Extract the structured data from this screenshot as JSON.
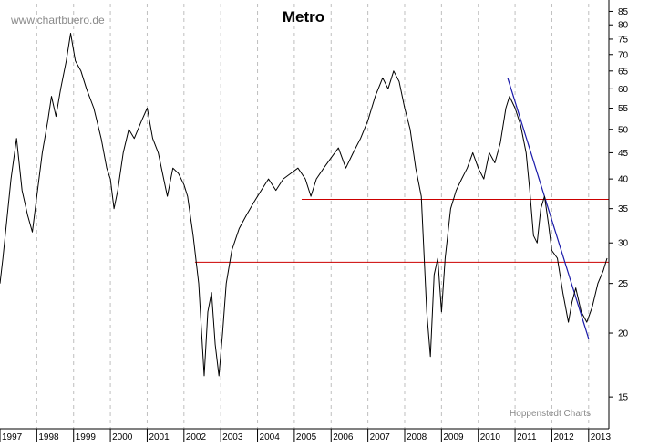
{
  "chart_data": {
    "type": "line",
    "title": "Metro",
    "watermark": "www.chartbuero.de",
    "credit": "Hoppenstedt Charts",
    "yscale": "log",
    "ylim": [
      13,
      88
    ],
    "xlim": [
      1997.0,
      2013.55
    ],
    "y_ticks": [
      15,
      20,
      25,
      30,
      35,
      40,
      45,
      50,
      55,
      60,
      65,
      70,
      75,
      80,
      85
    ],
    "x_ticks": [
      "1997",
      "1998",
      "1999",
      "2000",
      "2001",
      "2002",
      "2003",
      "2004",
      "2005",
      "2006",
      "2007",
      "2008",
      "2009",
      "2010",
      "2011",
      "2012",
      "2013"
    ],
    "grid": "vertical-dashed",
    "colors": {
      "price": "#000000",
      "support": "#cc0000",
      "trend": "#1a1aaa",
      "grid": "#bfbfbf"
    },
    "series": [
      {
        "values": [
          [
            1997.0,
            25.0
          ],
          [
            1997.08,
            28.0
          ],
          [
            1997.18,
            33.0
          ],
          [
            1997.3,
            40.0
          ],
          [
            1997.45,
            48.0
          ],
          [
            1997.6,
            38.0
          ],
          [
            1997.75,
            34.0
          ],
          [
            1997.88,
            31.5
          ],
          [
            1998.0,
            37.0
          ],
          [
            1998.15,
            45.0
          ],
          [
            1998.3,
            52.0
          ],
          [
            1998.4,
            58.0
          ],
          [
            1998.52,
            53.0
          ],
          [
            1998.65,
            60.0
          ],
          [
            1998.8,
            68.0
          ],
          [
            1998.92,
            77.0
          ],
          [
            1999.05,
            68.0
          ],
          [
            1999.2,
            65.0
          ],
          [
            1999.35,
            60.0
          ],
          [
            1999.55,
            55.0
          ],
          [
            1999.75,
            48.0
          ],
          [
            1999.9,
            42.0
          ],
          [
            2000.0,
            40.0
          ],
          [
            2000.1,
            35.0
          ],
          [
            2000.2,
            38.0
          ],
          [
            2000.35,
            45.0
          ],
          [
            2000.5,
            50.0
          ],
          [
            2000.65,
            48.0
          ],
          [
            2000.85,
            52.0
          ],
          [
            2001.0,
            55.0
          ],
          [
            2001.15,
            48.0
          ],
          [
            2001.3,
            45.0
          ],
          [
            2001.45,
            40.0
          ],
          [
            2001.55,
            37.0
          ],
          [
            2001.7,
            42.0
          ],
          [
            2001.85,
            41.0
          ],
          [
            2002.0,
            39.0
          ],
          [
            2002.1,
            37.0
          ],
          [
            2002.25,
            31.0
          ],
          [
            2002.4,
            25.0
          ],
          [
            2002.48,
            20.0
          ],
          [
            2002.55,
            16.5
          ],
          [
            2002.65,
            22.0
          ],
          [
            2002.75,
            24.0
          ],
          [
            2002.85,
            19.0
          ],
          [
            2002.95,
            16.5
          ],
          [
            2003.05,
            20.0
          ],
          [
            2003.15,
            25.0
          ],
          [
            2003.3,
            29.0
          ],
          [
            2003.5,
            32.0
          ],
          [
            2003.7,
            34.0
          ],
          [
            2003.9,
            36.0
          ],
          [
            2004.1,
            38.0
          ],
          [
            2004.3,
            40.0
          ],
          [
            2004.5,
            38.0
          ],
          [
            2004.7,
            40.0
          ],
          [
            2004.9,
            41.0
          ],
          [
            2005.1,
            42.0
          ],
          [
            2005.3,
            40.0
          ],
          [
            2005.45,
            37.0
          ],
          [
            2005.6,
            40.0
          ],
          [
            2005.8,
            42.0
          ],
          [
            2006.0,
            44.0
          ],
          [
            2006.2,
            46.0
          ],
          [
            2006.4,
            42.0
          ],
          [
            2006.6,
            45.0
          ],
          [
            2006.8,
            48.0
          ],
          [
            2007.0,
            52.0
          ],
          [
            2007.2,
            58.0
          ],
          [
            2007.4,
            63.0
          ],
          [
            2007.55,
            60.0
          ],
          [
            2007.7,
            65.0
          ],
          [
            2007.85,
            62.0
          ],
          [
            2008.0,
            55.0
          ],
          [
            2008.15,
            50.0
          ],
          [
            2008.3,
            42.0
          ],
          [
            2008.45,
            37.0
          ],
          [
            2008.6,
            22.0
          ],
          [
            2008.7,
            18.0
          ],
          [
            2008.8,
            26.0
          ],
          [
            2008.9,
            28.0
          ],
          [
            2009.0,
            22.0
          ],
          [
            2009.1,
            28.0
          ],
          [
            2009.25,
            35.0
          ],
          [
            2009.4,
            38.0
          ],
          [
            2009.55,
            40.0
          ],
          [
            2009.7,
            42.0
          ],
          [
            2009.85,
            45.0
          ],
          [
            2010.0,
            42.0
          ],
          [
            2010.15,
            40.0
          ],
          [
            2010.3,
            45.0
          ],
          [
            2010.45,
            43.0
          ],
          [
            2010.6,
            47.0
          ],
          [
            2010.75,
            55.0
          ],
          [
            2010.85,
            58.0
          ],
          [
            2011.0,
            55.0
          ],
          [
            2011.15,
            51.0
          ],
          [
            2011.3,
            45.0
          ],
          [
            2011.4,
            38.0
          ],
          [
            2011.5,
            31.0
          ],
          [
            2011.6,
            30.0
          ],
          [
            2011.7,
            35.0
          ],
          [
            2011.8,
            37.0
          ],
          [
            2011.9,
            33.0
          ],
          [
            2012.0,
            29.0
          ],
          [
            2012.15,
            28.0
          ],
          [
            2012.3,
            24.0
          ],
          [
            2012.45,
            21.0
          ],
          [
            2012.55,
            23.0
          ],
          [
            2012.65,
            24.5
          ],
          [
            2012.8,
            22.0
          ],
          [
            2012.95,
            21.0
          ],
          [
            2013.1,
            22.5
          ],
          [
            2013.25,
            25.0
          ],
          [
            2013.4,
            26.5
          ],
          [
            2013.5,
            28.0
          ]
        ]
      }
    ],
    "annotations": [
      {
        "type": "hline",
        "y": 36.5,
        "x_from": 2005.2,
        "x_to": 2013.55
      },
      {
        "type": "hline",
        "y": 27.5,
        "x_from": 2002.3,
        "x_to": 2013.55
      },
      {
        "type": "trendline",
        "from": [
          2010.8,
          63.0
        ],
        "to": [
          2013.0,
          19.5
        ]
      }
    ]
  }
}
